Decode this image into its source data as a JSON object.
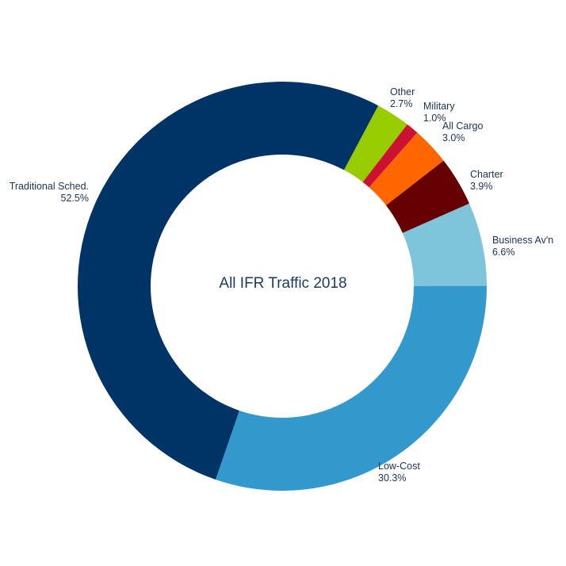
{
  "chart_data": {
    "type": "pie",
    "donut": true,
    "title": "All IFR Traffic 2018",
    "slices": [
      {
        "label": "Other",
        "value": 2.7,
        "value_label": "2.7%",
        "color": "#99cc00"
      },
      {
        "label": "Military",
        "value": 1.0,
        "value_label": "1.0%",
        "color": "#cc1133"
      },
      {
        "label": "All Cargo",
        "value": 3.0,
        "value_label": "3.0%",
        "color": "#ff6600"
      },
      {
        "label": "Charter",
        "value": 3.9,
        "value_label": "3.9%",
        "color": "#660000"
      },
      {
        "label": "Business Av'n",
        "value": 6.6,
        "value_label": "6.6%",
        "color": "#7ec4da"
      },
      {
        "label": "Low-Cost",
        "value": 30.3,
        "value_label": "30.3%",
        "color": "#3399cc"
      },
      {
        "label": "Traditional Sched.",
        "value": 52.5,
        "value_label": "52.5%",
        "color": "#003366"
      }
    ]
  }
}
